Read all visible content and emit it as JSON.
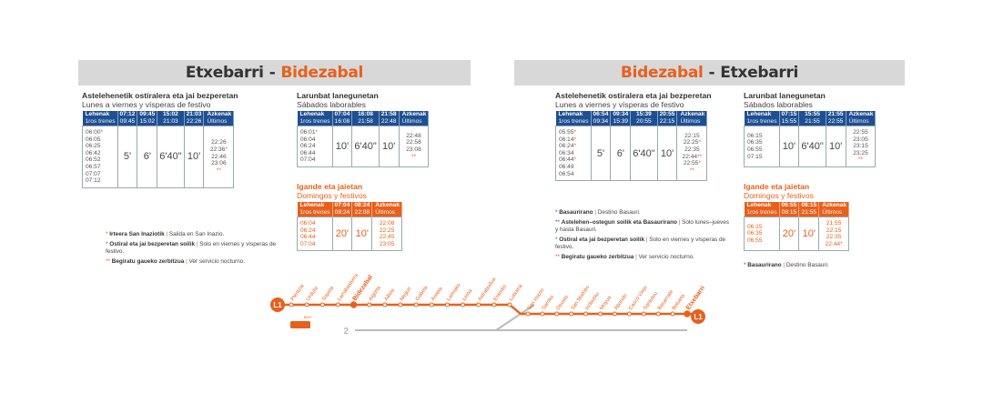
{
  "left": {
    "title_a": "Etxebarri",
    "title_b": "Bidezabal",
    "weekday": {
      "title": "Astelehenetik ostiralera eta jai bezperetan",
      "subtitle": "Lunes a viernes y vísperas de festivo",
      "header_first_1": "Lehenak",
      "header_first_2": "1ros trenes",
      "header_cols": [
        [
          "07:12",
          "09:45"
        ],
        [
          "09:45",
          "15:02"
        ],
        [
          "15:02",
          "21:03"
        ],
        [
          "21:03",
          "22:26"
        ]
      ],
      "header_last_1": "Azkenak",
      "header_last_2": "Últimos",
      "first_times": [
        "06:00*",
        "06:05",
        "06:25",
        "06:42",
        "06:52",
        "06:57",
        "07:07",
        "07:12"
      ],
      "freqs": [
        "5'",
        "6'",
        "6'40\"",
        "10'"
      ],
      "last_times": [
        "22:26",
        "22:36*",
        "22:46",
        "23:06",
        "**"
      ]
    },
    "saturday": {
      "title": "Larunbat lanegunetan",
      "subtitle": "Sábados laborables",
      "header_first_1": "Lehenak",
      "header_first_2": "1ros trenes",
      "header_cols": [
        [
          "07:04",
          "16:08"
        ],
        [
          "16:08",
          "21:58"
        ],
        [
          "21:58",
          "22:48"
        ]
      ],
      "header_last_1": "Azkenak",
      "header_last_2": "Últimos",
      "first_times": [
        "06:01*",
        "06:04",
        "06:24",
        "06:44",
        "07:04"
      ],
      "freqs": [
        "10'",
        "6'40\"",
        "10'"
      ],
      "last_times": [
        "22:48",
        "22:58",
        "23:08",
        "**"
      ]
    },
    "holiday": {
      "title": "Igande eta jaietan",
      "subtitle": "Domingos y festivos",
      "header_first_1": "Lehenak",
      "header_first_2": "1ros trenes",
      "header_cols": [
        [
          "07:04",
          "08:24"
        ],
        [
          "08:24",
          "22:08"
        ]
      ],
      "header_last_1": "Azkenak",
      "header_last_2": "Últimos",
      "first_times": [
        "06:04",
        "06:24",
        "06:44",
        "07:04"
      ],
      "freqs": [
        "20'",
        "10'"
      ],
      "last_times": [
        "22:08",
        "22:25",
        "22:45",
        "23:05"
      ]
    },
    "notes": [
      {
        "mark": "*",
        "bold": "Irteera San Inaziotik",
        "rest": "Salida en San Inazio."
      },
      {
        "mark": "*",
        "bold": "Ostiral eta jai bezperetan soilik",
        "rest": "Solo en viernes y vísperas de festivo."
      },
      {
        "mark": "**",
        "bold": "Begiratu gaueko zerbitzua",
        "rest": "Ver servicio nocturno."
      }
    ]
  },
  "right": {
    "title_a": "Bidezabal",
    "title_b": "Etxebarri",
    "weekday": {
      "title": "Astelehenetik ostiralera eta jai bezperetan",
      "subtitle": "Lunes a viernes y vísperas de festivo",
      "header_first_1": "Lehenak",
      "header_first_2": "1ros trenes",
      "header_cols": [
        [
          "06:54",
          "09:34"
        ],
        [
          "09:34",
          "15:39"
        ],
        [
          "15:39",
          "20:55"
        ],
        [
          "20:55",
          "22:15"
        ]
      ],
      "header_last_1": "Azkenak",
      "header_last_2": "Últimos",
      "first_times": [
        "05:55*",
        "06:14*",
        "06:24*",
        "06:34",
        "06:44*",
        "06:49",
        "06:54"
      ],
      "freqs": [
        "5'",
        "6'",
        "6'40\"",
        "10'"
      ],
      "last_times": [
        "22:15",
        "22:25*",
        "22:35",
        "22:44**",
        "22:55*",
        "**"
      ]
    },
    "saturday": {
      "title": "Larunbat lanegunetan",
      "subtitle": "Sábados laborables",
      "header_first_1": "Lehenak",
      "header_first_2": "1ros trenes",
      "header_cols": [
        [
          "07:15",
          "15:55"
        ],
        [
          "15:55",
          "21:55"
        ],
        [
          "21:55",
          "22:55"
        ]
      ],
      "header_last_1": "Azkenak",
      "header_last_2": "Últimos",
      "first_times": [
        "06:15",
        "06:35",
        "06:55",
        "07:15"
      ],
      "freqs": [
        "10'",
        "6'40\"",
        "10'"
      ],
      "last_times": [
        "22:55",
        "23:05",
        "23:15",
        "23:25",
        "**"
      ]
    },
    "holiday": {
      "title": "Igande eta jaietan",
      "subtitle": "Domingos y festivos",
      "header_first_1": "Lehenak",
      "header_first_2": "1ros trenes",
      "header_cols": [
        [
          "06:55",
          "08:15"
        ],
        [
          "08:15",
          "21:55"
        ]
      ],
      "header_last_1": "Azkenak",
      "header_last_2": "Últimos",
      "first_times": [
        "06:15",
        "06:35",
        "06:55"
      ],
      "freqs": [
        "20'",
        "10'"
      ],
      "last_times": [
        "21:55",
        "22:15",
        "22:35",
        "22:44*"
      ]
    },
    "notes": [
      {
        "mark": "*",
        "bold": "Basaurirano",
        "rest": "Destino Basauri."
      },
      {
        "mark": "**",
        "bold": "Astelehen–ostegun soilik eta Basaurirano",
        "rest": "Solo lunes–jueves y hasta Basauri."
      },
      {
        "mark": "*",
        "bold": "Ostiral eta jai bezperetan soilik",
        "rest": "Solo en viernes y vísperas de festivo."
      },
      {
        "mark": "**",
        "bold": "Begiratu gaueko zerbitzua",
        "rest": "Ver servicio nocturno."
      }
    ],
    "holiday_note": {
      "mark": "*",
      "bold": "Basaurirano",
      "rest": "Destino Basauri."
    }
  },
  "map": {
    "line_label": "L1",
    "line2_label": "2",
    "bus_label": "BUS",
    "stations": [
      "Plentzia",
      "Urduliz",
      "Sopela",
      "Larrabasterra",
      "Bidezabal",
      "Algorta",
      "Aiboa",
      "Neguri",
      "Gobela",
      "Areeta",
      "Lamiako",
      "Leioa",
      "Astrabudua",
      "Erandio",
      "Lutxana",
      "San Inazio",
      "Sarriko",
      "Deusto",
      "San Mamés",
      "Indautxu",
      "Moyua",
      "Abando",
      "Casco Viejo",
      "Santutxu",
      "Basarrate",
      "Bolueta",
      "Etxebarri"
    ],
    "highlight": [
      "Bidezabal",
      "Etxebarri"
    ],
    "colors": {
      "orange": "#e8601c",
      "blue": "#1f4f93",
      "grey": "#bbbbbb"
    }
  }
}
